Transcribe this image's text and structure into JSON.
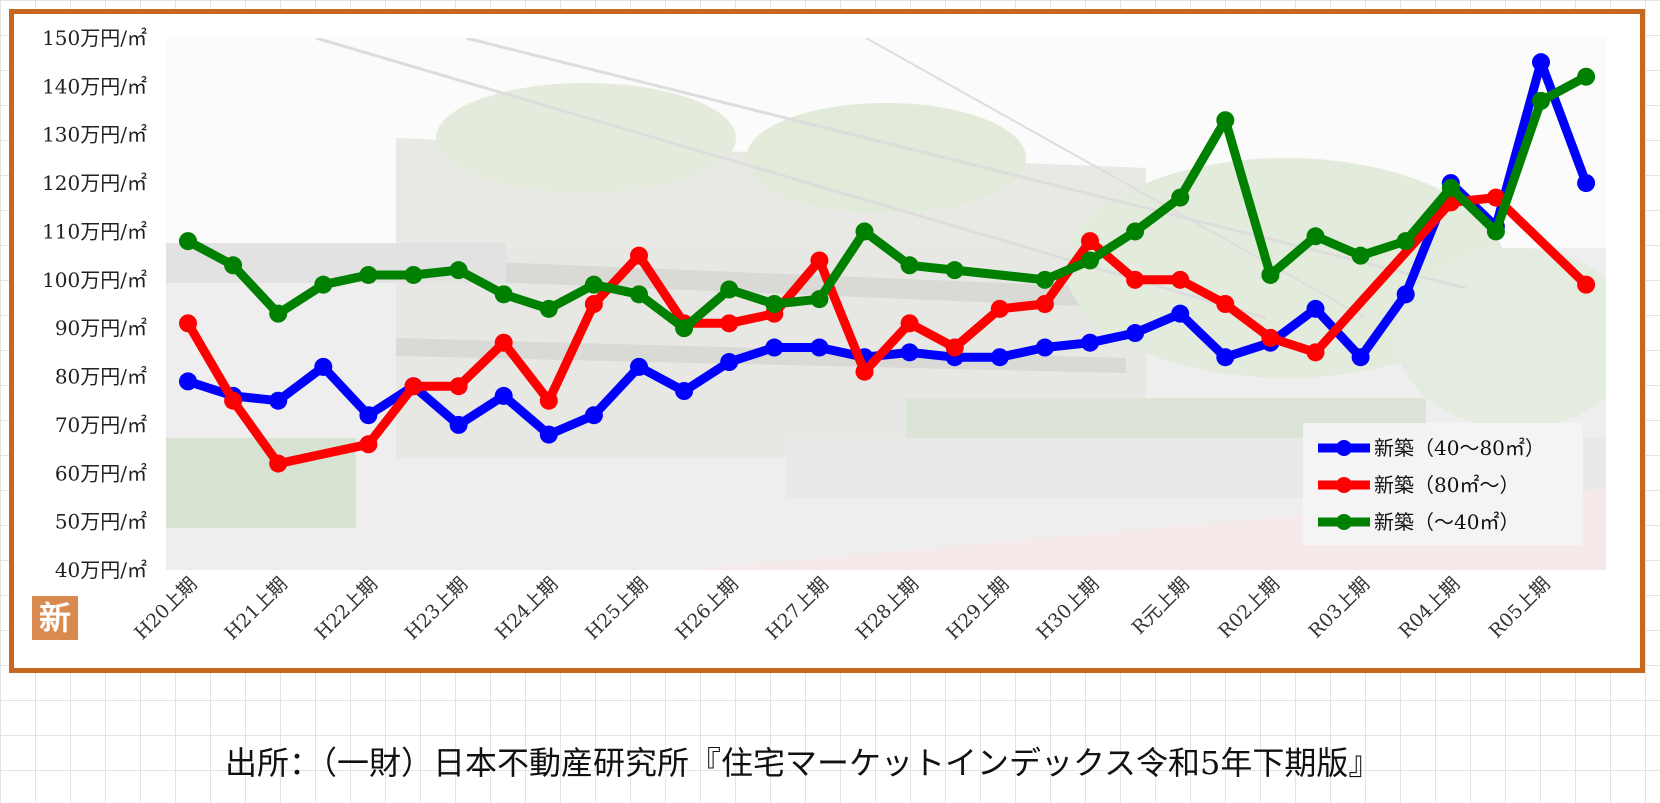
{
  "chart_data": {
    "type": "line",
    "title": "",
    "xlabel": "",
    "ylabel": "",
    "ylim": [
      40,
      150
    ],
    "y_ticks": [
      "40万円/㎡",
      "50万円/㎡",
      "60万円/㎡",
      "70万円/㎡",
      "80万円/㎡",
      "90万円/㎡",
      "100万円/㎡",
      "110万円/㎡",
      "120万円/㎡",
      "130万円/㎡",
      "140万円/㎡",
      "150万円/㎡"
    ],
    "x_tick_labels": [
      "H20上期",
      "H21上期",
      "H22上期",
      "H23上期",
      "H24上期",
      "H25上期",
      "H26上期",
      "H27上期",
      "H28上期",
      "H29上期",
      "H30上期",
      "R元上期",
      "R02上期",
      "R03上期",
      "R04上期",
      "R05上期"
    ],
    "legend_placement": "bottom-right",
    "grid": false,
    "series": [
      {
        "name": "新築（40～80㎡）",
        "color": "#0000ff",
        "points": [
          [
            0,
            79
          ],
          [
            1,
            76
          ],
          [
            2,
            75
          ],
          [
            3,
            82
          ],
          [
            4,
            72
          ],
          [
            5,
            78
          ],
          [
            6,
            70
          ],
          [
            7,
            76
          ],
          [
            8,
            68
          ],
          [
            9,
            72
          ],
          [
            10,
            82
          ],
          [
            11,
            77
          ],
          [
            12,
            83
          ],
          [
            13,
            86
          ],
          [
            14,
            86
          ],
          [
            15,
            84
          ],
          [
            16,
            85
          ],
          [
            17,
            84
          ],
          [
            18,
            84
          ],
          [
            19,
            86
          ],
          [
            20,
            87
          ],
          [
            21,
            89
          ],
          [
            22,
            93
          ],
          [
            23,
            84
          ],
          [
            24,
            87
          ],
          [
            25,
            94
          ],
          [
            26,
            84
          ],
          [
            27,
            97
          ],
          [
            28,
            120
          ],
          [
            29,
            111
          ],
          [
            30,
            145
          ],
          [
            31,
            120
          ]
        ]
      },
      {
        "name": "新築（80㎡～）",
        "color": "#ff0000",
        "points": [
          [
            0,
            91
          ],
          [
            1,
            75
          ],
          [
            2,
            62
          ],
          [
            4,
            66
          ],
          [
            5,
            78
          ],
          [
            6,
            78
          ],
          [
            7,
            87
          ],
          [
            8,
            75
          ],
          [
            9,
            95
          ],
          [
            10,
            105
          ],
          [
            11,
            91
          ],
          [
            12,
            91
          ],
          [
            13,
            93
          ],
          [
            14,
            104
          ],
          [
            15,
            81
          ],
          [
            16,
            91
          ],
          [
            17,
            86
          ],
          [
            18,
            94
          ],
          [
            19,
            95
          ],
          [
            20,
            108
          ],
          [
            21,
            100
          ],
          [
            22,
            100
          ],
          [
            23,
            95
          ],
          [
            24,
            88
          ],
          [
            25,
            85
          ],
          [
            28,
            116
          ],
          [
            29,
            117
          ],
          [
            31,
            99
          ]
        ]
      },
      {
        "name": "新築（～40㎡）",
        "color": "#008000",
        "points": [
          [
            0,
            108
          ],
          [
            1,
            103
          ],
          [
            2,
            93
          ],
          [
            3,
            99
          ],
          [
            4,
            101
          ],
          [
            5,
            101
          ],
          [
            6,
            102
          ],
          [
            7,
            97
          ],
          [
            8,
            94
          ],
          [
            9,
            99
          ],
          [
            10,
            97
          ],
          [
            11,
            90
          ],
          [
            12,
            98
          ],
          [
            13,
            95
          ],
          [
            14,
            96
          ],
          [
            15,
            110
          ],
          [
            16,
            103
          ],
          [
            17,
            102
          ],
          [
            19,
            100
          ],
          [
            20,
            104
          ],
          [
            21,
            110
          ],
          [
            22,
            117
          ],
          [
            23,
            133
          ],
          [
            24,
            101
          ],
          [
            25,
            109
          ],
          [
            26,
            105
          ],
          [
            27,
            108
          ],
          [
            28,
            119
          ],
          [
            29,
            110
          ],
          [
            30,
            137
          ],
          [
            31,
            142
          ]
        ]
      }
    ]
  },
  "badge_text": "新",
  "source_text": "出所：（一財）日本不動産研究所『住宅マーケットインデックス令和5年下期版』"
}
